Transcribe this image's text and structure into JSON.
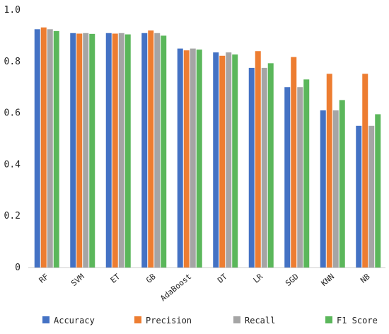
{
  "chart_data": {
    "type": "bar",
    "title": "",
    "xlabel": "",
    "ylabel": "",
    "ylim": [
      0,
      1.0
    ],
    "yticks": [
      "0",
      "0.2",
      "0.4",
      "0.6",
      "0.8",
      "1.0"
    ],
    "grid": false,
    "legend": "bottom",
    "categories": [
      "RF",
      "SVM",
      "ET",
      "GB",
      "AdaBoost",
      "DT",
      "LR",
      "SGD",
      "KNN",
      "NB"
    ],
    "series": [
      {
        "name": "Accuracy",
        "color": "#4472C4",
        "values": [
          0.925,
          0.91,
          0.91,
          0.91,
          0.85,
          0.835,
          0.775,
          0.7,
          0.61,
          0.55
        ]
      },
      {
        "name": "Precision",
        "color": "#ED7D31",
        "values": [
          0.932,
          0.908,
          0.908,
          0.92,
          0.843,
          0.822,
          0.84,
          0.817,
          0.752,
          0.752
        ]
      },
      {
        "name": "Recall",
        "color": "#A5A5A5",
        "values": [
          0.925,
          0.91,
          0.91,
          0.91,
          0.85,
          0.835,
          0.775,
          0.7,
          0.61,
          0.55
        ]
      },
      {
        "name": "F1 Score",
        "color": "#5BB75B",
        "values": [
          0.918,
          0.907,
          0.905,
          0.9,
          0.846,
          0.827,
          0.793,
          0.73,
          0.65,
          0.595
        ]
      }
    ]
  }
}
